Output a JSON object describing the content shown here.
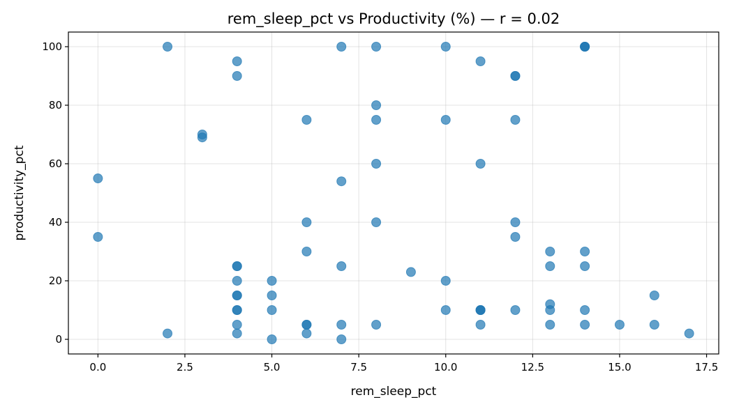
{
  "chart_data": {
    "type": "scatter",
    "title": "rem_sleep_pct vs Productivity (%)  —  r = 0.02",
    "xlabel": "rem_sleep_pct",
    "ylabel": "productivity_pct",
    "xlim": [
      -0.85,
      17.85
    ],
    "ylim": [
      -5,
      105
    ],
    "xticks": [
      0.0,
      2.5,
      5.0,
      7.5,
      10.0,
      12.5,
      15.0,
      17.5
    ],
    "xtick_labels": [
      "0.0",
      "2.5",
      "5.0",
      "7.5",
      "10.0",
      "12.5",
      "15.0",
      "17.5"
    ],
    "yticks": [
      0,
      20,
      40,
      60,
      80,
      100
    ],
    "ytick_labels": [
      "0",
      "20",
      "40",
      "60",
      "80",
      "100"
    ],
    "grid": true,
    "marker_color": "#1f77b4",
    "marker_alpha": 0.7,
    "points": [
      {
        "x": 0,
        "y": 55
      },
      {
        "x": 0,
        "y": 35
      },
      {
        "x": 2,
        "y": 100
      },
      {
        "x": 2,
        "y": 2
      },
      {
        "x": 3,
        "y": 70
      },
      {
        "x": 3,
        "y": 69
      },
      {
        "x": 4,
        "y": 95
      },
      {
        "x": 4,
        "y": 90
      },
      {
        "x": 4,
        "y": 25
      },
      {
        "x": 4,
        "y": 25
      },
      {
        "x": 4,
        "y": 20
      },
      {
        "x": 4,
        "y": 15
      },
      {
        "x": 4,
        "y": 15
      },
      {
        "x": 4,
        "y": 10
      },
      {
        "x": 4,
        "y": 10
      },
      {
        "x": 4,
        "y": 5
      },
      {
        "x": 4,
        "y": 2
      },
      {
        "x": 5,
        "y": 20
      },
      {
        "x": 5,
        "y": 15
      },
      {
        "x": 5,
        "y": 10
      },
      {
        "x": 5,
        "y": 0
      },
      {
        "x": 6,
        "y": 75
      },
      {
        "x": 6,
        "y": 40
      },
      {
        "x": 6,
        "y": 30
      },
      {
        "x": 6,
        "y": 5
      },
      {
        "x": 6,
        "y": 5
      },
      {
        "x": 6,
        "y": 2
      },
      {
        "x": 7,
        "y": 100
      },
      {
        "x": 7,
        "y": 54
      },
      {
        "x": 7,
        "y": 25
      },
      {
        "x": 7,
        "y": 5
      },
      {
        "x": 7,
        "y": 0
      },
      {
        "x": 8,
        "y": 100
      },
      {
        "x": 8,
        "y": 80
      },
      {
        "x": 8,
        "y": 75
      },
      {
        "x": 8,
        "y": 60
      },
      {
        "x": 8,
        "y": 40
      },
      {
        "x": 8,
        "y": 5
      },
      {
        "x": 9,
        "y": 23
      },
      {
        "x": 10,
        "y": 100
      },
      {
        "x": 10,
        "y": 75
      },
      {
        "x": 10,
        "y": 20
      },
      {
        "x": 10,
        "y": 10
      },
      {
        "x": 11,
        "y": 95
      },
      {
        "x": 11,
        "y": 60
      },
      {
        "x": 11,
        "y": 10
      },
      {
        "x": 11,
        "y": 10
      },
      {
        "x": 11,
        "y": 10
      },
      {
        "x": 11,
        "y": 5
      },
      {
        "x": 12,
        "y": 90
      },
      {
        "x": 12,
        "y": 90
      },
      {
        "x": 12,
        "y": 75
      },
      {
        "x": 12,
        "y": 40
      },
      {
        "x": 12,
        "y": 35
      },
      {
        "x": 12,
        "y": 10
      },
      {
        "x": 13,
        "y": 30
      },
      {
        "x": 13,
        "y": 25
      },
      {
        "x": 13,
        "y": 12
      },
      {
        "x": 13,
        "y": 10
      },
      {
        "x": 13,
        "y": 5
      },
      {
        "x": 14,
        "y": 100
      },
      {
        "x": 14,
        "y": 100
      },
      {
        "x": 14,
        "y": 100
      },
      {
        "x": 14,
        "y": 30
      },
      {
        "x": 14,
        "y": 25
      },
      {
        "x": 14,
        "y": 10
      },
      {
        "x": 14,
        "y": 5
      },
      {
        "x": 15,
        "y": 5
      },
      {
        "x": 16,
        "y": 15
      },
      {
        "x": 16,
        "y": 5
      },
      {
        "x": 17,
        "y": 2
      }
    ]
  }
}
